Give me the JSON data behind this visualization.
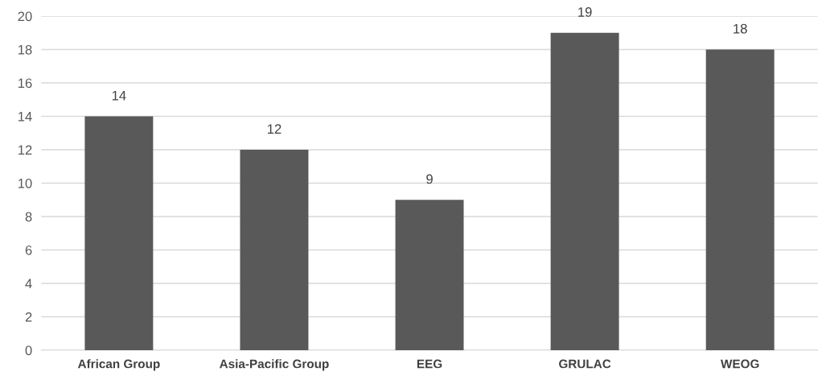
{
  "chart_data": {
    "type": "bar",
    "categories": [
      "African Group",
      "Asia-Pacific Group",
      "EEG",
      "GRULAC",
      "WEOG"
    ],
    "values": [
      14,
      12,
      9,
      19,
      18
    ],
    "color": "#595959",
    "ylim": [
      0,
      20
    ],
    "yticks": [
      0,
      2,
      4,
      6,
      8,
      10,
      12,
      14,
      16,
      18,
      20
    ],
    "grid": "y",
    "data_labels": true
  }
}
